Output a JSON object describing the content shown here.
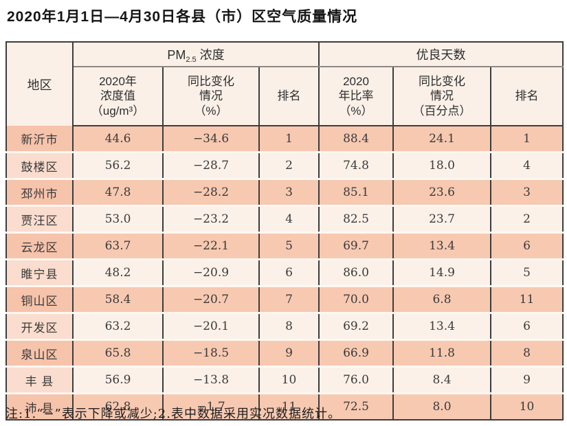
{
  "title": "2020年1月1日—4月30日各县（市）区空气质量情况",
  "footnote": "注:1.“−”表示下降或减少;2.表中数据采用实况数据统计。",
  "colors": {
    "row_odd": "#F7C9B1",
    "row_even": "#FCF1E9",
    "region_even": "#FADDCE",
    "header_bg": "#FAF0E8",
    "border_dark": "#3c3c3c"
  },
  "table": {
    "region_header": "地区",
    "group_pm25": {
      "prefix": "PM",
      "sub": "2.5",
      "suffix": " 浓度"
    },
    "group_good_days": "优良天数",
    "sub_headers": [
      "2020年\n浓度值\n（ug/m³）",
      "同比变化\n情况\n（%）",
      "排名",
      "2020\n年比率\n（%）",
      "同比变化\n情况\n（百分点）",
      "排名"
    ],
    "rows": [
      [
        "新沂市",
        "44.6",
        "−34.6",
        "1",
        "88.4",
        "24.1",
        "1"
      ],
      [
        "鼓楼区",
        "56.2",
        "−28.7",
        "2",
        "74.8",
        "18.0",
        "4"
      ],
      [
        "邳州市",
        "47.8",
        "−28.2",
        "3",
        "85.1",
        "23.6",
        "3"
      ],
      [
        "贾汪区",
        "53.0",
        "−23.2",
        "4",
        "82.5",
        "23.7",
        "2"
      ],
      [
        "云龙区",
        "63.7",
        "−22.1",
        "5",
        "69.7",
        "13.4",
        "6"
      ],
      [
        "睢宁县",
        "48.2",
        "−20.9",
        "6",
        "86.0",
        "14.9",
        "5"
      ],
      [
        "铜山区",
        "58.4",
        "−20.7",
        "7",
        "70.0",
        "6.8",
        "11"
      ],
      [
        "开发区",
        "63.2",
        "−20.1",
        "8",
        "69.2",
        "13.4",
        "6"
      ],
      [
        "泉山区",
        "65.8",
        "−18.5",
        "9",
        "66.9",
        "11.8",
        "8"
      ],
      [
        "丰 县",
        "56.9",
        "−13.8",
        "10",
        "76.0",
        "8.4",
        "9"
      ],
      [
        "沛 县",
        "62.8",
        "−1.7",
        "11",
        "72.5",
        "8.0",
        "10"
      ]
    ]
  }
}
